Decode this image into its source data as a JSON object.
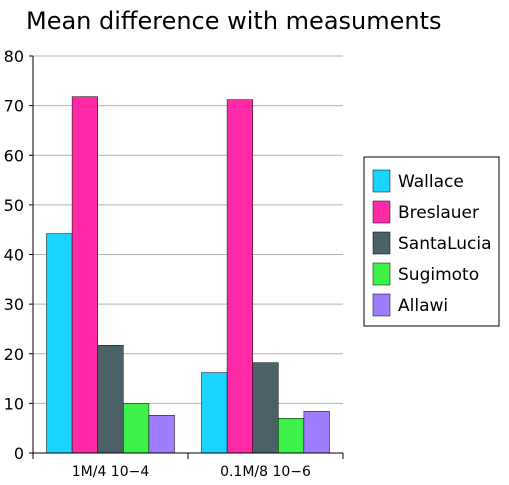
{
  "chart_data": {
    "type": "bar",
    "title": "Mean difference with measuments",
    "xlabel": "",
    "ylabel": "",
    "categories": [
      "1M/4 10−4",
      "0.1M/8 10−6"
    ],
    "yticks": [
      "0",
      "10",
      "20",
      "30",
      "40",
      "50",
      "60",
      "70",
      "80"
    ],
    "ylim": [
      0,
      80
    ],
    "grid": true,
    "legend_position": "right",
    "series": [
      {
        "name": "Wallace",
        "color": "#1ad4ff",
        "values": [
          44.2,
          16.2
        ]
      },
      {
        "name": "Breslauer",
        "color": "#ff2ba6",
        "values": [
          71.8,
          71.2
        ]
      },
      {
        "name": "SantaLucia",
        "color": "#4a6168",
        "values": [
          21.7,
          18.2
        ]
      },
      {
        "name": "Sugimoto",
        "color": "#3ef24a",
        "values": [
          10.0,
          7.0
        ]
      },
      {
        "name": "Allawi",
        "color": "#a07cff",
        "values": [
          7.6,
          8.4
        ]
      }
    ]
  }
}
